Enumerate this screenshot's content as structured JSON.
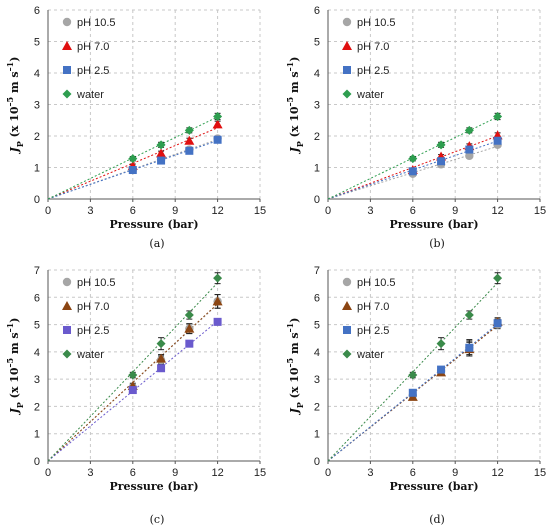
{
  "chart_data": [
    {
      "type": "scatter",
      "panel_label": "(a)",
      "xlabel": "Pressure (bar)",
      "ylabel_main": "J",
      "ylabel_sub": "P",
      "ylabel_unit": " (x 10",
      "ylabel_exp": "–5",
      "ylabel_tail": " m s",
      "ylabel_exp2": "–1",
      "ylabel_close": ")",
      "xlim": [
        0,
        15
      ],
      "ylim": [
        0,
        6
      ],
      "xticks": [
        "0",
        "3",
        "6",
        "9",
        "12",
        "15"
      ],
      "yticks": [
        "0",
        "1",
        "2",
        "3",
        "4",
        "5",
        "6"
      ],
      "legend_position": "top-left",
      "grid": true,
      "x": [
        6,
        8,
        10,
        12
      ],
      "series": [
        {
          "name": "pH 10.5",
          "color": "#a6a6a6",
          "marker": "circle",
          "values": [
            0.92,
            1.25,
            1.57,
            1.92
          ],
          "errors": [
            0.05,
            0.05,
            0.06,
            0.07
          ]
        },
        {
          "name": "pH 7.0",
          "color": "#e01010",
          "marker": "triangle",
          "values": [
            1.05,
            1.45,
            1.85,
            2.37
          ],
          "errors": [
            0.06,
            0.07,
            0.08,
            0.1
          ]
        },
        {
          "name": "pH 2.5",
          "color": "#4472c4",
          "marker": "square",
          "values": [
            0.92,
            1.22,
            1.53,
            1.88
          ],
          "errors": [
            0.04,
            0.05,
            0.06,
            0.06
          ]
        },
        {
          "name": "water",
          "color": "#2e9e4f",
          "marker": "diamond",
          "values": [
            1.28,
            1.72,
            2.18,
            2.62
          ],
          "errors": [
            0.07,
            0.08,
            0.08,
            0.1
          ]
        }
      ]
    },
    {
      "type": "scatter",
      "panel_label": "(b)",
      "xlabel": "Pressure (bar)",
      "ylabel_main": "J",
      "ylabel_sub": "P",
      "ylabel_unit": " (x 10",
      "ylabel_exp": "–5",
      "ylabel_tail": " m s",
      "ylabel_exp2": "–1",
      "ylabel_close": ")",
      "xlim": [
        0,
        15
      ],
      "ylim": [
        0,
        6
      ],
      "xticks": [
        "0",
        "3",
        "6",
        "9",
        "12",
        "15"
      ],
      "yticks": [
        "0",
        "1",
        "2",
        "3",
        "4",
        "5",
        "6"
      ],
      "legend_position": "top-left",
      "grid": true,
      "x": [
        6,
        8,
        10,
        12
      ],
      "series": [
        {
          "name": "pH 10.5",
          "color": "#a6a6a6",
          "marker": "circle",
          "values": [
            0.8,
            1.1,
            1.37,
            1.72
          ],
          "errors": [
            0.04,
            0.05,
            0.05,
            0.06
          ]
        },
        {
          "name": "pH 7.0",
          "color": "#e01010",
          "marker": "triangle",
          "values": [
            0.92,
            1.35,
            1.68,
            2.02
          ],
          "errors": [
            0.05,
            0.06,
            0.07,
            0.08
          ]
        },
        {
          "name": "pH 2.5",
          "color": "#4472c4",
          "marker": "square",
          "values": [
            0.88,
            1.2,
            1.57,
            1.85
          ],
          "errors": [
            0.04,
            0.05,
            0.06,
            0.06
          ]
        },
        {
          "name": "water",
          "color": "#2e9e4f",
          "marker": "diamond",
          "values": [
            1.28,
            1.72,
            2.18,
            2.62
          ],
          "errors": [
            0.07,
            0.08,
            0.08,
            0.1
          ]
        }
      ]
    },
    {
      "type": "scatter",
      "panel_label": "(c)",
      "xlabel": "Pressure (bar)",
      "ylabel_main": "J",
      "ylabel_sub": "P",
      "ylabel_unit": " (x 10",
      "ylabel_exp": "–5",
      "ylabel_tail": " m s",
      "ylabel_exp2": "–1",
      "ylabel_close": ")",
      "xlim": [
        0,
        15
      ],
      "ylim": [
        0,
        7
      ],
      "xticks": [
        "0",
        "3",
        "6",
        "9",
        "12",
        "15"
      ],
      "yticks": [
        "0",
        "1",
        "2",
        "3",
        "4",
        "5",
        "6",
        "7"
      ],
      "legend_position": "top-left",
      "grid": true,
      "x": [
        6,
        8,
        10,
        12
      ],
      "series": [
        {
          "name": "pH 10.5",
          "color": "#a6a6a6",
          "marker": "circle",
          "values": [
            2.7,
            3.7,
            4.85,
            5.85
          ],
          "errors": [
            0.1,
            0.15,
            0.18,
            0.25
          ]
        },
        {
          "name": "pH 7.0",
          "color": "#8b4513",
          "marker": "triangle",
          "values": [
            2.75,
            3.75,
            4.85,
            5.85
          ],
          "errors": [
            0.1,
            0.15,
            0.18,
            0.25
          ]
        },
        {
          "name": "pH 2.5",
          "color": "#6a5acd",
          "marker": "square",
          "values": [
            2.6,
            3.4,
            4.3,
            5.1
          ],
          "errors": [
            0.08,
            0.1,
            0.1,
            0.12
          ]
        },
        {
          "name": "water",
          "color": "#3a8a4a",
          "marker": "diamond",
          "values": [
            3.15,
            4.3,
            5.35,
            6.7
          ],
          "errors": [
            0.1,
            0.22,
            0.15,
            0.2
          ]
        }
      ]
    },
    {
      "type": "scatter",
      "panel_label": "(d)",
      "xlabel": "Pressure (bar)",
      "ylabel_main": "J",
      "ylabel_sub": "P",
      "ylabel_unit": " (x 10",
      "ylabel_exp": "–5",
      "ylabel_tail": " m s",
      "ylabel_exp2": "–1",
      "ylabel_close": ")",
      "xlim": [
        0,
        15
      ],
      "ylim": [
        0,
        7
      ],
      "xticks": [
        "0",
        "3",
        "6",
        "9",
        "12",
        "15"
      ],
      "yticks": [
        "0",
        "1",
        "2",
        "3",
        "4",
        "5",
        "6",
        "7"
      ],
      "legend_position": "top-left",
      "grid": true,
      "x": [
        6,
        8,
        10,
        12
      ],
      "series": [
        {
          "name": "pH 10.5",
          "color": "#a6a6a6",
          "marker": "circle",
          "values": [
            2.4,
            3.3,
            4.15,
            5.0
          ],
          "errors": [
            0.08,
            0.1,
            0.25,
            0.15
          ]
        },
        {
          "name": "pH 7.0",
          "color": "#8b4513",
          "marker": "triangle",
          "values": [
            2.35,
            3.25,
            4.1,
            5.1
          ],
          "errors": [
            0.08,
            0.1,
            0.25,
            0.15
          ]
        },
        {
          "name": "pH 2.5",
          "color": "#4472c4",
          "marker": "square",
          "values": [
            2.5,
            3.35,
            4.15,
            5.05
          ],
          "errors": [
            0.08,
            0.1,
            0.3,
            0.15
          ]
        },
        {
          "name": "water",
          "color": "#3a8a4a",
          "marker": "diamond",
          "values": [
            3.15,
            4.3,
            5.35,
            6.7
          ],
          "errors": [
            0.1,
            0.22,
            0.15,
            0.2
          ]
        }
      ]
    }
  ]
}
